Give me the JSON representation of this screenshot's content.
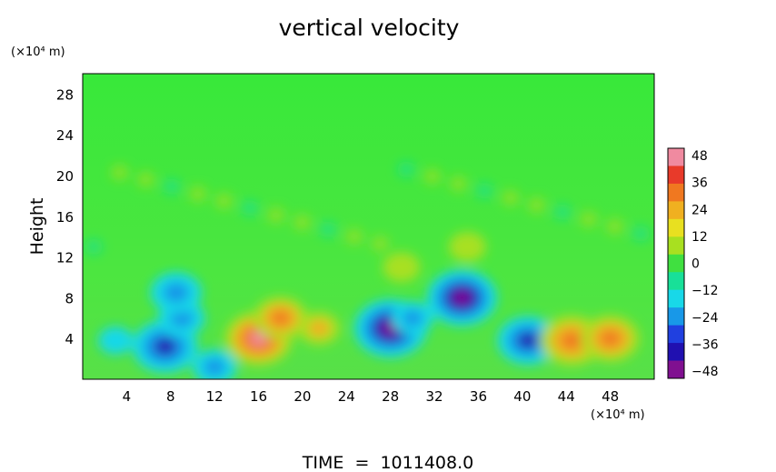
{
  "chart_data": {
    "type": "heatmap",
    "title": "vertical velocity",
    "xlabel": "",
    "ylabel": "Height",
    "x_unit": "(×10⁴ m)",
    "y_unit": "(×10⁴ m)",
    "xlim": [
      0,
      52
    ],
    "ylim": [
      0,
      30
    ],
    "x_ticks": [
      "4",
      "8",
      "12",
      "16",
      "20",
      "24",
      "28",
      "32",
      "36",
      "40",
      "44",
      "48"
    ],
    "y_ticks": [
      "4",
      "8",
      "12",
      "16",
      "20",
      "24",
      "28"
    ],
    "colorbar": {
      "min": -48,
      "max": 48,
      "tick_labels": [
        "48",
        "36",
        "24",
        "12",
        "0",
        "−12",
        "−24",
        "−36",
        "−48"
      ],
      "colors": [
        "#f08aa0",
        "#e83a2a",
        "#f07820",
        "#f0b020",
        "#e8e020",
        "#a8e020",
        "#40e040",
        "#18e098",
        "#18d8e8",
        "#1898e8",
        "#2040e0",
        "#2010b0",
        "#801090"
      ]
    },
    "features": [
      {
        "x": 3,
        "y": 3.8,
        "w": -14
      },
      {
        "x": 7.5,
        "y": 3.2,
        "w": -40
      },
      {
        "x": 9,
        "y": 6,
        "w": -24
      },
      {
        "x": 8.5,
        "y": 8.5,
        "w": -28
      },
      {
        "x": 12,
        "y": 1.2,
        "w": -22
      },
      {
        "x": 16,
        "y": 4,
        "w": 42
      },
      {
        "x": 18,
        "y": 6,
        "w": 30
      },
      {
        "x": 21.5,
        "y": 5,
        "w": 20
      },
      {
        "x": 28,
        "y": 5,
        "w": -46
      },
      {
        "x": 30,
        "y": 6,
        "w": -20
      },
      {
        "x": 29,
        "y": 11,
        "w": 16
      },
      {
        "x": 34.5,
        "y": 8,
        "w": -44
      },
      {
        "x": 35,
        "y": 13,
        "w": 16
      },
      {
        "x": 40.5,
        "y": 3.8,
        "w": -36
      },
      {
        "x": 44.5,
        "y": 3.8,
        "w": 38
      },
      {
        "x": 48,
        "y": 4,
        "w": 34
      }
    ],
    "footer": "TIME  =  1011408.0"
  }
}
